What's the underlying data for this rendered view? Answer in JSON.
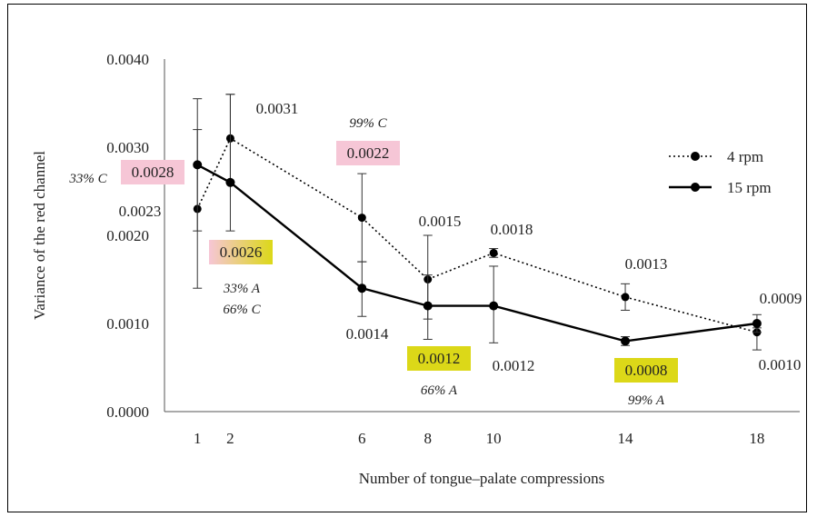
{
  "chart_data": {
    "type": "line",
    "xlabel": "Number of tongue–palate compressions",
    "ylabel": "Variance of the red channel",
    "xlim": [
      0,
      19.3
    ],
    "ylim": [
      0,
      0.004
    ],
    "x_ticks": [
      1,
      2,
      6,
      8,
      10,
      14,
      18
    ],
    "y_ticks": [
      "0.0000",
      "0.0010",
      "0.0020",
      "0.0030",
      "0.0040"
    ],
    "grid": false,
    "legend_position": "right",
    "series": [
      {
        "name": "4 rpm",
        "style": "dotted",
        "color": "#000000",
        "x": [
          1,
          2,
          6,
          8,
          10,
          14,
          18
        ],
        "values": [
          0.0023,
          0.0031,
          0.0022,
          0.0015,
          0.0018,
          0.0013,
          0.0009
        ],
        "err_upper": [
          0.0032,
          0.0036,
          0.0027,
          0.002,
          0.00185,
          0.00145,
          0.00095
        ],
        "err_lower": [
          0.0014,
          0.0026,
          0.0017,
          0.00105,
          0.00175,
          0.00115,
          0.0007
        ]
      },
      {
        "name": "15 rpm",
        "style": "solid",
        "color": "#000000",
        "x": [
          1,
          2,
          6,
          8,
          10,
          14,
          18
        ],
        "values": [
          0.0028,
          0.0026,
          0.0014,
          0.0012,
          0.0012,
          0.0008,
          0.001
        ],
        "err_upper": [
          0.00355,
          0.0036,
          0.0017,
          0.00155,
          0.00165,
          0.00085,
          0.0011
        ],
        "err_lower": [
          0.00205,
          0.00205,
          0.00108,
          0.00082,
          0.00078,
          0.00075,
          0.0009
        ]
      }
    ],
    "data_labels": [
      {
        "text": "0.0023",
        "series": "4 rpm",
        "x": 1
      },
      {
        "text": "0.0031",
        "series": "4 rpm",
        "x": 2
      },
      {
        "text": "0.0022",
        "series": "4 rpm",
        "x": 6
      },
      {
        "text": "0.0015",
        "series": "4 rpm",
        "x": 8
      },
      {
        "text": "0.0018",
        "series": "4 rpm",
        "x": 10
      },
      {
        "text": "0.0013",
        "series": "4 rpm",
        "x": 14
      },
      {
        "text": "0.0009",
        "series": "4 rpm",
        "x": 18
      },
      {
        "text": "0.0028",
        "series": "15 rpm",
        "x": 1
      },
      {
        "text": "0.0026",
        "series": "15 rpm",
        "x": 2
      },
      {
        "text": "0.0014",
        "series": "15 rpm",
        "x": 6
      },
      {
        "text": "0.0012",
        "series": "15 rpm",
        "x": 8
      },
      {
        "text": "0.0012",
        "series": "15 rpm",
        "x": 10
      },
      {
        "text": "0.0008",
        "series": "15 rpm",
        "x": 14
      },
      {
        "text": "0.0010",
        "series": "15 rpm",
        "x": 18
      }
    ],
    "annotations": [
      {
        "text": "33% C",
        "color": "#e0307a"
      },
      {
        "text": "99% C",
        "color": "#e0307a"
      },
      {
        "text": "33% A",
        "color": "#b0a020"
      },
      {
        "text": "66% C",
        "color": "#e0307a"
      },
      {
        "text": "66% A",
        "color": "#b0a020"
      },
      {
        "text": "99% A",
        "color": "#b0a020"
      }
    ],
    "highlight_colors": {
      "pink": "#f6c6d6",
      "yellow": "#dcd818"
    }
  }
}
